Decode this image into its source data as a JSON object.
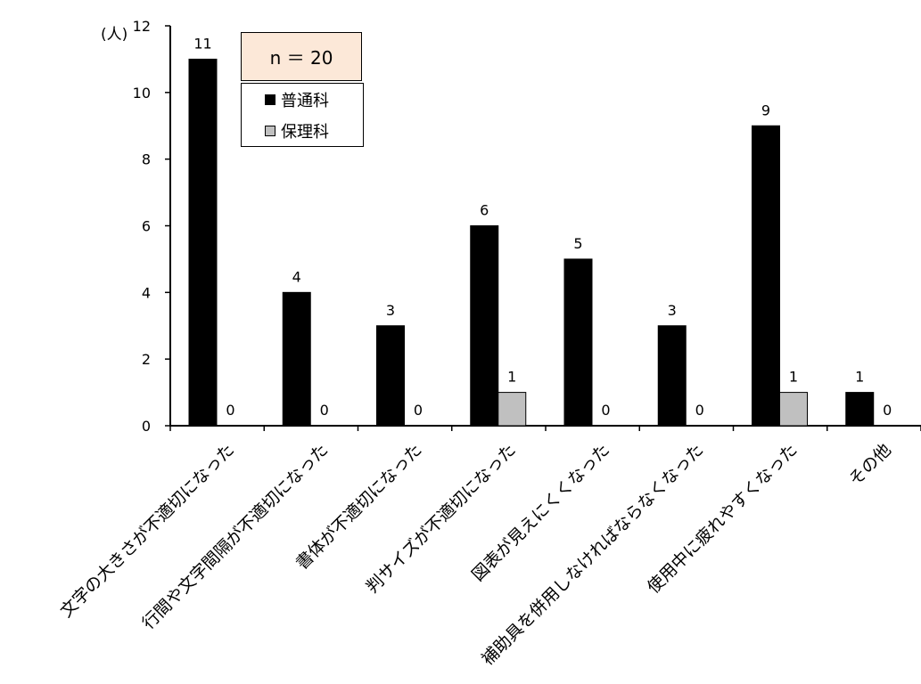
{
  "chart_data": {
    "type": "bar",
    "title": "",
    "ylabel": "(人)",
    "xlabel": "",
    "ylim": [
      0,
      12
    ],
    "yticks": [
      0,
      2,
      4,
      6,
      8,
      10,
      12
    ],
    "grid": false,
    "legend_position": "top-left",
    "annotation": "n ＝ 20",
    "categories": [
      "文字の大きさが不適切になった",
      "行間や文字間隔が不適切になった",
      "書体が不適切になった",
      "判サイズが不適切になった",
      "図表が見えにくくなった",
      "補助具を併用しなければならなくなった",
      "使用中に疲れやすくなった",
      "その他"
    ],
    "series": [
      {
        "name": "普通科",
        "color": "#000000",
        "values": [
          11,
          4,
          3,
          6,
          5,
          3,
          9,
          1
        ]
      },
      {
        "name": "保理科",
        "color": "#c0c0c0",
        "values": [
          0,
          0,
          0,
          1,
          0,
          0,
          1,
          0
        ]
      }
    ]
  }
}
